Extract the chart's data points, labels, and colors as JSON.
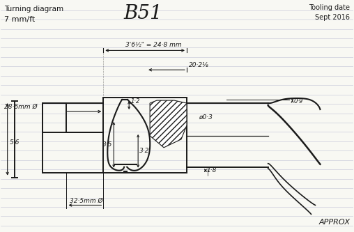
{
  "title_left": "Turning diagram",
  "subtitle_left": "7 mm/ft",
  "title_right": "Tooling date\nSept 2016",
  "casting_label": "B51",
  "approx_label": "APPROX",
  "dim_248": "3'6½\" = 24·8 mm",
  "dim_2025": "20·2⅙",
  "dim_286": "28·6mm Ø",
  "dim_56": "5·6",
  "dim_35": "3·5",
  "dim_32": "3·2",
  "dim_12": "1·2",
  "dim_18": "1·8",
  "dim_09": "0·9",
  "dim_403": "ø0·3",
  "dim_325": "32·5mm Ø",
  "bg_color": "#f8f8f3",
  "line_color": "#1a1a1a",
  "ruled_line_color": "#c5c8d8"
}
